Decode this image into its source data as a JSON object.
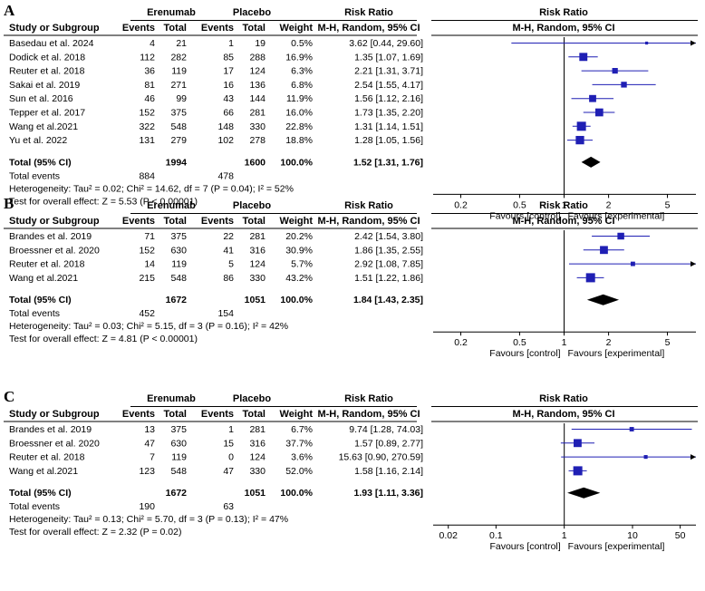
{
  "colors": {
    "square": "#1f1fb4",
    "line": "#1f1fb4",
    "diamond": "#000000"
  },
  "header": {
    "col_study": "Study or Subgroup",
    "group1": "Erenumab",
    "group2": "Placebo",
    "events": "Events",
    "total": "Total",
    "weight": "Weight",
    "rr_title": "Risk Ratio",
    "rr_method": "M-H, Random, 95% CI",
    "favours_left": "Favours [control]",
    "favours_right": "Favours [experimental]"
  },
  "chart_data": [
    {
      "label": "A",
      "type": "forest",
      "x_scale": "log",
      "xticks": [
        "0.2",
        "0.5",
        "1",
        "2",
        "5"
      ],
      "xticks_values": [
        0.2,
        0.5,
        1,
        2,
        5
      ],
      "xlim": [
        0.13,
        7.8
      ],
      "studies": [
        {
          "name": "Basedau et al. 2024",
          "e1": "4",
          "n1": "21",
          "e2": "1",
          "n2": "19",
          "weight": "0.5%",
          "ci_text": "3.62 [0.44, 29.60]",
          "rr": 3.62,
          "lo": 0.44,
          "hi": 29.6,
          "w": 0.5
        },
        {
          "name": "Dodick et al. 2018",
          "e1": "112",
          "n1": "282",
          "e2": "85",
          "n2": "288",
          "weight": "16.9%",
          "ci_text": "1.35 [1.07, 1.69]",
          "rr": 1.35,
          "lo": 1.07,
          "hi": 1.69,
          "w": 16.9
        },
        {
          "name": "Reuter et al. 2018",
          "e1": "36",
          "n1": "119",
          "e2": "17",
          "n2": "124",
          "weight": "6.3%",
          "ci_text": "2.21 [1.31, 3.71]",
          "rr": 2.21,
          "lo": 1.31,
          "hi": 3.71,
          "w": 6.3
        },
        {
          "name": "Sakai et al. 2019",
          "e1": "81",
          "n1": "271",
          "e2": "16",
          "n2": "136",
          "weight": "6.8%",
          "ci_text": "2.54 [1.55, 4.17]",
          "rr": 2.54,
          "lo": 1.55,
          "hi": 4.17,
          "w": 6.8
        },
        {
          "name": "Sun et al. 2016",
          "e1": "46",
          "n1": "99",
          "e2": "43",
          "n2": "144",
          "weight": "11.9%",
          "ci_text": "1.56 [1.12, 2.16]",
          "rr": 1.56,
          "lo": 1.12,
          "hi": 2.16,
          "w": 11.9
        },
        {
          "name": "Tepper et al. 2017",
          "e1": "152",
          "n1": "375",
          "e2": "66",
          "n2": "281",
          "weight": "16.0%",
          "ci_text": "1.73 [1.35, 2.20]",
          "rr": 1.73,
          "lo": 1.35,
          "hi": 2.2,
          "w": 16.0
        },
        {
          "name": "Wang et al.2021",
          "e1": "322",
          "n1": "548",
          "e2": "148",
          "n2": "330",
          "weight": "22.8%",
          "ci_text": "1.31 [1.14, 1.51]",
          "rr": 1.31,
          "lo": 1.14,
          "hi": 1.51,
          "w": 22.8
        },
        {
          "name": "Yu et al. 2022",
          "e1": "131",
          "n1": "279",
          "e2": "102",
          "n2": "278",
          "weight": "18.8%",
          "ci_text": "1.28 [1.05, 1.56]",
          "rr": 1.28,
          "lo": 1.05,
          "hi": 1.56,
          "w": 18.8
        }
      ],
      "total": {
        "label": "Total (95% CI)",
        "n1": "1994",
        "n2": "1600",
        "weight": "100.0%",
        "ci_text": "1.52 [1.31, 1.76]",
        "rr": 1.52,
        "lo": 1.31,
        "hi": 1.76
      },
      "total_events": {
        "label": "Total events",
        "e1": "884",
        "e2": "478"
      },
      "heterogeneity": "Heterogeneity: Tau² = 0.02; Chi² = 14.62, df = 7 (P = 0.04); I² = 52%",
      "overall": "Test for overall effect: Z = 5.53 (P < 0.00001)"
    },
    {
      "label": "B",
      "type": "forest",
      "x_scale": "log",
      "xticks": [
        "0.2",
        "0.5",
        "1",
        "2",
        "5"
      ],
      "xticks_values": [
        0.2,
        0.5,
        1,
        2,
        5
      ],
      "xlim": [
        0.13,
        7.8
      ],
      "studies": [
        {
          "name": "Brandes et al. 2019",
          "e1": "71",
          "n1": "375",
          "e2": "22",
          "n2": "281",
          "weight": "20.2%",
          "ci_text": "2.42 [1.54, 3.80]",
          "rr": 2.42,
          "lo": 1.54,
          "hi": 3.8,
          "w": 20.2
        },
        {
          "name": "Broessner et al. 2020",
          "e1": "152",
          "n1": "630",
          "e2": "41",
          "n2": "316",
          "weight": "30.9%",
          "ci_text": "1.86 [1.35, 2.55]",
          "rr": 1.86,
          "lo": 1.35,
          "hi": 2.55,
          "w": 30.9
        },
        {
          "name": "Reuter et al. 2018",
          "e1": "14",
          "n1": "119",
          "e2": "5",
          "n2": "124",
          "weight": "5.7%",
          "ci_text": "2.92 [1.08, 7.85]",
          "rr": 2.92,
          "lo": 1.08,
          "hi": 7.85,
          "w": 5.7
        },
        {
          "name": "Wang et al.2021",
          "e1": "215",
          "n1": "548",
          "e2": "86",
          "n2": "330",
          "weight": "43.2%",
          "ci_text": "1.51 [1.22, 1.86]",
          "rr": 1.51,
          "lo": 1.22,
          "hi": 1.86,
          "w": 43.2
        }
      ],
      "total": {
        "label": "Total (95% CI)",
        "n1": "1672",
        "n2": "1051",
        "weight": "100.0%",
        "ci_text": "1.84 [1.43, 2.35]",
        "rr": 1.84,
        "lo": 1.43,
        "hi": 2.35
      },
      "total_events": {
        "label": "Total events",
        "e1": "452",
        "e2": "154"
      },
      "heterogeneity": "Heterogeneity: Tau² = 0.03; Chi² = 5.15, df = 3 (P = 0.16); I² = 42%",
      "overall": "Test for overall effect: Z = 4.81 (P < 0.00001)"
    },
    {
      "label": "C",
      "type": "forest",
      "x_scale": "log",
      "xticks": [
        "0.02",
        "0.1",
        "1",
        "10",
        "50"
      ],
      "xticks_values": [
        0.02,
        0.1,
        1,
        10,
        50
      ],
      "xlim": [
        0.012,
        85
      ],
      "studies": [
        {
          "name": "Brandes et al. 2019",
          "e1": "13",
          "n1": "375",
          "e2": "1",
          "n2": "281",
          "weight": "6.7%",
          "ci_text": "9.74 [1.28, 74.03]",
          "rr": 9.74,
          "lo": 1.28,
          "hi": 74.03,
          "w": 6.7
        },
        {
          "name": "Broessner et al. 2020",
          "e1": "47",
          "n1": "630",
          "e2": "15",
          "n2": "316",
          "weight": "37.7%",
          "ci_text": "1.57 [0.89, 2.77]",
          "rr": 1.57,
          "lo": 0.89,
          "hi": 2.77,
          "w": 37.7
        },
        {
          "name": "Reuter et al. 2018",
          "e1": "7",
          "n1": "119",
          "e2": "0",
          "n2": "124",
          "weight": "3.6%",
          "ci_text": "15.63 [0.90, 270.59]",
          "rr": 15.63,
          "lo": 0.9,
          "hi": 270.59,
          "w": 3.6
        },
        {
          "name": "Wang et al.2021",
          "e1": "123",
          "n1": "548",
          "e2": "47",
          "n2": "330",
          "weight": "52.0%",
          "ci_text": "1.58 [1.16, 2.14]",
          "rr": 1.58,
          "lo": 1.16,
          "hi": 2.14,
          "w": 52.0
        }
      ],
      "total": {
        "label": "Total (95% CI)",
        "n1": "1672",
        "n2": "1051",
        "weight": "100.0%",
        "ci_text": "1.93 [1.11, 3.36]",
        "rr": 1.93,
        "lo": 1.11,
        "hi": 3.36
      },
      "total_events": {
        "label": "Total events",
        "e1": "190",
        "e2": "63"
      },
      "heterogeneity": "Heterogeneity: Tau² = 0.13; Chi² = 5.70, df = 3 (P = 0.13); I² = 47%",
      "overall": "Test for overall effect: Z = 2.32 (P = 0.02)"
    }
  ]
}
